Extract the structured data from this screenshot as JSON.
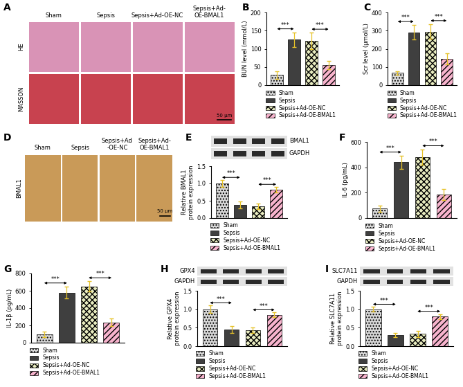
{
  "chart_data": [
    {
      "panel": "B",
      "type": "bar",
      "ylabel": "BUN level (mmol/L)",
      "categories": [
        "Sham",
        "Sepsis",
        "Sepsis+Ad-OE-NC",
        "Sepsis+Ad-OE-BMAL1"
      ],
      "values": [
        28,
        125,
        122,
        55
      ],
      "errors": [
        10,
        20,
        22,
        12
      ],
      "colors": [
        "#d9d9d9",
        "#3f3f3f",
        "#e8ecc0",
        "#f7b3cd"
      ],
      "ylim": [
        0,
        200
      ],
      "yticks": [
        0,
        50,
        100,
        150,
        200
      ],
      "tick_labels": "y",
      "legend": "below",
      "comparisons": [
        {
          "groups": [
            "Sham",
            "Sepsis"
          ],
          "label": "***"
        },
        {
          "groups": [
            "Sepsis+Ad-OE-NC",
            "Sepsis+Ad-OE-BMAL1"
          ],
          "label": "***"
        }
      ]
    },
    {
      "panel": "C",
      "type": "bar",
      "ylabel": "Scr level (μmol/L)",
      "categories": [
        "Sham",
        "Sepsis",
        "Sepsis+Ad-OE-NC",
        "Sepsis+Ad-OE-BMAL1"
      ],
      "values": [
        68,
        290,
        295,
        145
      ],
      "errors": [
        10,
        40,
        40,
        30
      ],
      "colors": [
        "#d9d9d9",
        "#3f3f3f",
        "#e8ecc0",
        "#f7b3cd"
      ],
      "ylim": [
        0,
        400
      ],
      "yticks": [
        0,
        100,
        200,
        300,
        400
      ],
      "tick_labels": "y",
      "legend": "below",
      "comparisons": [
        {
          "groups": [
            "Sham",
            "Sepsis"
          ],
          "label": "***"
        },
        {
          "groups": [
            "Sepsis+Ad-OE-NC",
            "Sepsis+Ad-OE-BMAL1"
          ],
          "label": "***"
        }
      ]
    },
    {
      "panel": "E",
      "type": "bar",
      "ylabel": "Relative BMAL1\nprotein expression",
      "blot_labels": [
        "BMAL1",
        "GAPDH"
      ],
      "blot_label_side": "right",
      "categories": [
        "Sham",
        "Sepsis",
        "Sepsis+Ad-OE-NC",
        "Sepsis+Ad-OE-BMAL1"
      ],
      "values": [
        1.0,
        0.38,
        0.35,
        0.82
      ],
      "errors": [
        0.1,
        0.1,
        0.08,
        0.08
      ],
      "colors": [
        "#d9d9d9",
        "#3f3f3f",
        "#e8ecc0",
        "#f7b3cd"
      ],
      "ylim": [
        0,
        1.5
      ],
      "yticks": [
        {
          "value": 0,
          "label": "0.0"
        },
        {
          "value": 0.5,
          "label": "0.5"
        },
        {
          "value": 1,
          "label": "1.0"
        },
        {
          "value": 1.5,
          "label": "1.5"
        }
      ],
      "tick_labels": "y",
      "legend": "below",
      "comparisons": [
        {
          "groups": [
            "Sham",
            "Sepsis"
          ],
          "label": "***"
        },
        {
          "groups": [
            "Sepsis+Ad-OE-NC",
            "Sepsis+Ad-OE-BMAL1"
          ],
          "label": "***"
        }
      ]
    },
    {
      "panel": "F",
      "type": "bar",
      "ylabel": "IL-6 (pg/mL)",
      "categories": [
        "Sham",
        "Sepsis",
        "Sepsis+Ad-OE-NC",
        "Sepsis+Ad-OE-BMAL1"
      ],
      "values": [
        75,
        440,
        480,
        185
      ],
      "errors": [
        25,
        50,
        60,
        45
      ],
      "colors": [
        "#d9d9d9",
        "#3f3f3f",
        "#e8ecc0",
        "#f7b3cd"
      ],
      "ylim": [
        0,
        600
      ],
      "yticks": [
        0,
        200,
        400,
        600
      ],
      "tick_labels": "y",
      "legend": "below",
      "comparisons": [
        {
          "groups": [
            "Sham",
            "Sepsis"
          ],
          "label": "***"
        },
        {
          "groups": [
            "Sepsis+Ad-OE-NC",
            "Sepsis+Ad-OE-BMAL1"
          ],
          "label": "***"
        }
      ]
    },
    {
      "panel": "G",
      "type": "bar",
      "ylabel": "IL-1β (pg/mL)",
      "categories": [
        "Sham",
        "Sepsis",
        "Sepsis+Ad-OE-NC",
        "Sepsis+Ad-OE-BMAL1"
      ],
      "values": [
        95,
        580,
        650,
        235
      ],
      "errors": [
        30,
        70,
        60,
        45
      ],
      "colors": [
        "#d9d9d9",
        "#3f3f3f",
        "#e8ecc0",
        "#f7b3cd"
      ],
      "ylim": [
        0,
        800
      ],
      "yticks": [
        0,
        200,
        400,
        600,
        800
      ],
      "tick_labels": "y",
      "legend": "below",
      "comparisons": [
        {
          "groups": [
            "Sham",
            "Sepsis"
          ],
          "label": "***"
        },
        {
          "groups": [
            "Sepsis+Ad-OE-NC",
            "Sepsis+Ad-OE-BMAL1"
          ],
          "label": "***"
        }
      ]
    },
    {
      "panel": "H",
      "type": "bar",
      "ylabel": "Relative GPX4\nprotein expression",
      "blot_labels": [
        "GPX4",
        "GAPDH"
      ],
      "blot_label_side": "left",
      "categories": [
        "Sham",
        "Sepsis",
        "Sepsis+Ad-OE-NC",
        "Sepsis+Ad-OE-BMAL1"
      ],
      "values": [
        1.0,
        0.45,
        0.43,
        0.85
      ],
      "errors": [
        0.1,
        0.1,
        0.07,
        0.06
      ],
      "colors": [
        "#d9d9d9",
        "#3f3f3f",
        "#e8ecc0",
        "#f7b3cd"
      ],
      "ylim": [
        0,
        1.5
      ],
      "yticks": [
        {
          "value": 0,
          "label": "0.0"
        },
        {
          "value": 0.5,
          "label": "0.5"
        },
        {
          "value": 1,
          "label": "1.0"
        },
        {
          "value": 1.5,
          "label": "1.5"
        }
      ],
      "tick_labels": "y",
      "legend": "below",
      "comparisons": [
        {
          "groups": [
            "Sham",
            "Sepsis"
          ],
          "label": "***"
        },
        {
          "groups": [
            "Sepsis+Ad-OE-NC",
            "Sepsis+Ad-OE-BMAL1"
          ],
          "label": "***"
        }
      ]
    },
    {
      "panel": "I",
      "type": "bar",
      "ylabel": "Relative SLC7A11\nprotein expression",
      "blot_labels": [
        "SLC7A11",
        "GAPDH"
      ],
      "blot_label_side": "left",
      "categories": [
        "Sham",
        "Sepsis",
        "Sepsis+Ad-OE-NC",
        "Sepsis+Ad-OE-BMAL1"
      ],
      "values": [
        1.0,
        0.3,
        0.33,
        0.8
      ],
      "errors": [
        0.06,
        0.05,
        0.08,
        0.07
      ],
      "colors": [
        "#d9d9d9",
        "#3f3f3f",
        "#e8ecc0",
        "#f7b3cd"
      ],
      "ylim": [
        0,
        1.5
      ],
      "yticks": [
        {
          "value": 0,
          "label": "0.0"
        },
        {
          "value": 0.5,
          "label": "0.5"
        },
        {
          "value": 1,
          "label": "1.0"
        },
        {
          "value": 1.5,
          "label": "1.5"
        }
      ],
      "tick_labels": "y",
      "legend": "below",
      "comparisons": [
        {
          "groups": [
            "Sham",
            "Sepsis"
          ],
          "label": "***"
        },
        {
          "groups": [
            "Sepsis+Ad-OE-NC",
            "Sepsis+Ad-OE-BMAL1"
          ],
          "label": "***"
        }
      ]
    }
  ],
  "images": [
    {
      "panel": "A",
      "column_labels": [
        "Sham",
        "Sepsis",
        "Sepsis+Ad-OE-NC",
        "Sepsis+Ad-\nOE-BMAL1"
      ],
      "row_labels": [
        "HE",
        "MASSON"
      ],
      "scale_bar": "50 μm"
    },
    {
      "panel": "D",
      "column_labels": [
        "Sham",
        "Sepsis",
        "Sepsis+Ad\n-OE-NC",
        "Sepsis+Ad-\nOE-BMAL1"
      ],
      "row_labels": [
        "BMAL1"
      ],
      "scale_bar": "50 μm"
    }
  ]
}
